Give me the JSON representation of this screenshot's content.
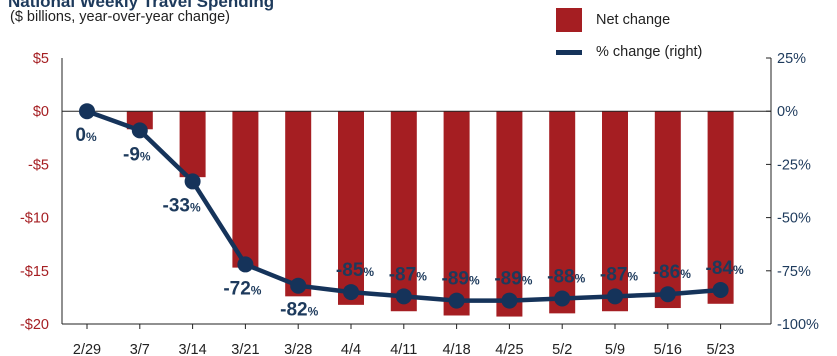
{
  "chart_data": {
    "type": "bar",
    "title": "National Weekly Travel Spending",
    "subtitle": "($ billions, year-over-year change)",
    "categories": [
      "2/29",
      "3/7",
      "3/14",
      "3/21",
      "3/28",
      "4/4",
      "4/11",
      "4/18",
      "4/25",
      "5/2",
      "5/9",
      "5/16",
      "5/23"
    ],
    "series": [
      {
        "name": "Net change",
        "axis": "left",
        "color": "#a51e22",
        "values": [
          0,
          -1.7,
          -6.2,
          -14.7,
          -17.4,
          -18.2,
          -18.8,
          -19.2,
          -19.3,
          -19.0,
          -18.8,
          -18.5,
          -18.1
        ]
      },
      {
        "name": "% change (right)",
        "axis": "right",
        "color": "#15335a",
        "values": [
          0,
          -9,
          -33,
          -72,
          -82,
          -85,
          -87,
          -89,
          -89,
          -88,
          -87,
          -86,
          -84
        ],
        "data_labels": [
          "0%",
          "-9%",
          "-33%",
          "-72%",
          "-82%",
          "-85%",
          "-87%",
          "-89%",
          "-89%",
          "-88%",
          "-87%",
          "-86%",
          "-84%"
        ]
      }
    ],
    "y_left": {
      "ylim": [
        -20,
        5
      ],
      "ticks": [
        5,
        0,
        -5,
        -10,
        -15,
        -20
      ],
      "tick_labels": [
        "$5",
        "$0",
        "-$5",
        "-$10",
        "-$15",
        "-$20"
      ]
    },
    "y_right": {
      "ylim": [
        -100,
        25
      ],
      "ticks": [
        25,
        0,
        -25,
        -50,
        -75,
        -100
      ],
      "tick_labels": [
        "25%",
        "0%",
        "-25%",
        "-50%",
        "-75%",
        "-100%"
      ]
    },
    "legend_position": "top-right",
    "grid": false
  }
}
